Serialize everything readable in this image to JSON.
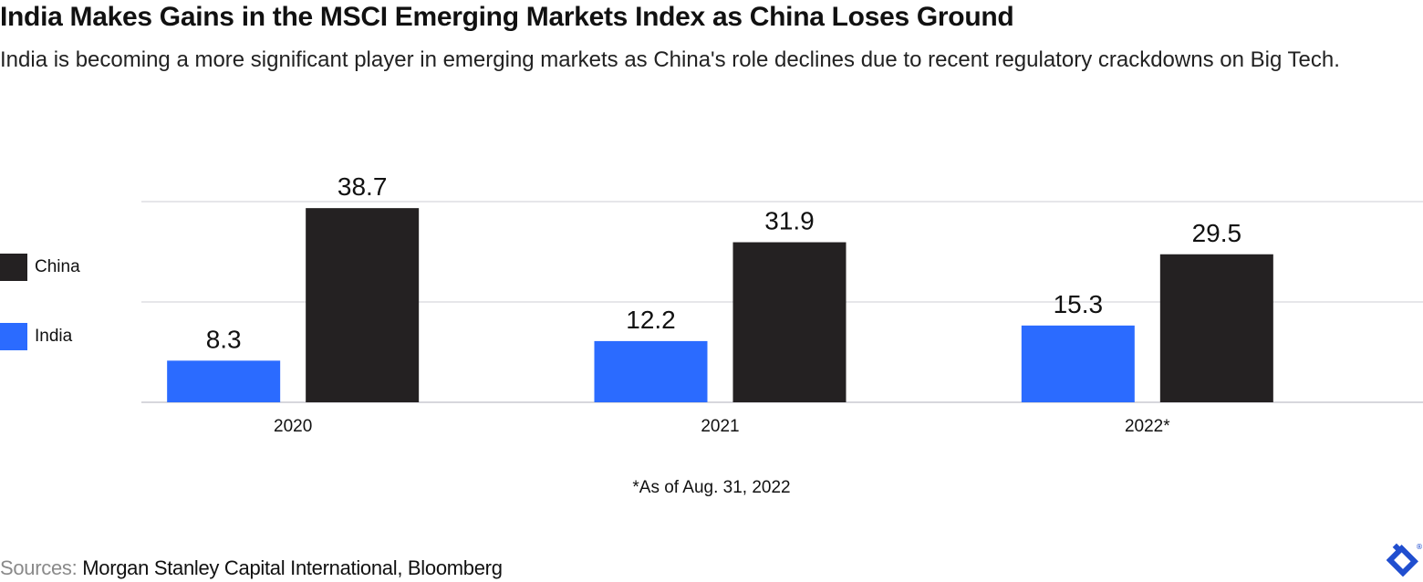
{
  "header": {
    "title": "India Makes Gains in the MSCI Emerging Markets Index as China Loses Ground",
    "subtitle": "India is becoming a more significant player in emerging markets as China's role declines due to recent regulatory crackdowns on Big Tech."
  },
  "footnote": "*As of Aug. 31, 2022",
  "sources": {
    "label": "Sources:",
    "text": "Morgan Stanley Capital International, Bloomberg"
  },
  "logo": {
    "icon": "toptal-logo-icon",
    "color": "#204ECF"
  },
  "chart_data": {
    "type": "bar",
    "title": "India Makes Gains in the MSCI Emerging Markets Index as China Loses Ground",
    "xlabel": "",
    "ylabel": "",
    "categories": [
      "2020",
      "2021",
      "2022*"
    ],
    "series": [
      {
        "name": "India",
        "color": "#2B6BFF",
        "values": [
          8.3,
          12.2,
          15.3
        ]
      },
      {
        "name": "China",
        "color": "#242122",
        "values": [
          38.7,
          31.9,
          29.5
        ]
      }
    ],
    "ylim": [
      0,
      40
    ],
    "gridlines": [
      0,
      20,
      40
    ],
    "grid": true,
    "y_axis_labels_shown": false,
    "data_labels": true,
    "legend": {
      "placement": "left",
      "entries": [
        "China",
        "India"
      ]
    }
  }
}
